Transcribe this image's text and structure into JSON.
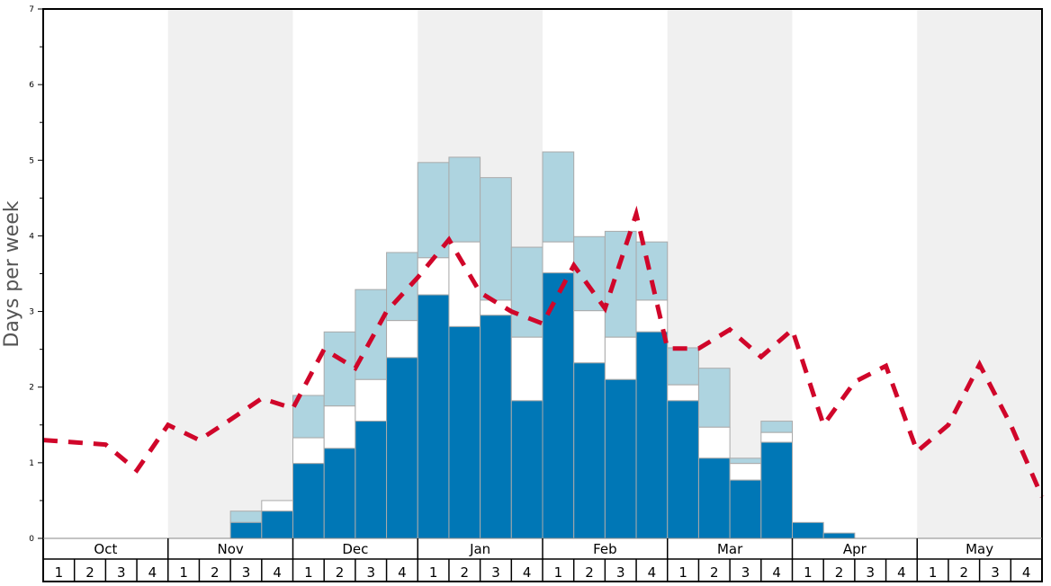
{
  "chart_data": {
    "type": "bar",
    "title": "",
    "ylabel": "Days per week",
    "xlabel": "",
    "ylim": [
      0,
      7
    ],
    "yticks": [
      "0",
      "1",
      "2",
      "3",
      "4",
      "5",
      "6",
      "7"
    ],
    "months": [
      "Oct",
      "Nov",
      "Dec",
      "Jan",
      "Feb",
      "Mar",
      "Apr",
      "May"
    ],
    "weeks": [
      "1",
      "2",
      "3",
      "4"
    ],
    "colors": {
      "dark": "#0077b6",
      "mid": "#ffffff",
      "light": "#aed4e0",
      "line": "#d0062a",
      "band": "#f0f0f0"
    },
    "series": [
      {
        "name": "dark",
        "values": [
          0,
          0,
          0,
          0,
          0,
          0,
          0.21,
          0.36,
          0.99,
          1.19,
          1.55,
          2.39,
          3.22,
          2.8,
          2.95,
          1.82,
          3.51,
          2.32,
          2.1,
          2.73,
          1.82,
          1.06,
          0.77,
          1.27,
          0.21,
          0.07,
          0,
          0,
          0,
          0,
          0,
          0
        ]
      },
      {
        "name": "white_top",
        "values": [
          0,
          0,
          0,
          0,
          0,
          0,
          0.21,
          0.5,
          1.33,
          1.75,
          2.1,
          2.88,
          3.71,
          3.92,
          3.15,
          2.66,
          3.92,
          3.01,
          2.66,
          3.15,
          2.03,
          1.47,
          0.99,
          1.4,
          0.21,
          0.07,
          0,
          0,
          0,
          0,
          0,
          0
        ]
      },
      {
        "name": "light_top",
        "values": [
          0,
          0,
          0,
          0,
          0,
          0,
          0.36,
          0.5,
          1.89,
          2.73,
          3.29,
          3.78,
          4.97,
          5.04,
          4.77,
          3.85,
          5.11,
          3.99,
          4.06,
          3.92,
          2.52,
          2.25,
          1.06,
          1.55,
          0.21,
          0.07,
          0,
          0,
          0,
          0,
          0,
          0
        ]
      },
      {
        "name": "average",
        "values": [
          1.3,
          1.27,
          1.24,
          0.9,
          1.5,
          1.3,
          1.57,
          1.85,
          1.72,
          2.5,
          2.25,
          3.0,
          3.45,
          3.95,
          3.25,
          3.0,
          2.84,
          3.61,
          3.04,
          4.29,
          2.51,
          2.51,
          2.76,
          2.4,
          2.76,
          1.5,
          2.07,
          2.28,
          1.15,
          1.5,
          2.3,
          1.5,
          0.55
        ]
      }
    ]
  }
}
